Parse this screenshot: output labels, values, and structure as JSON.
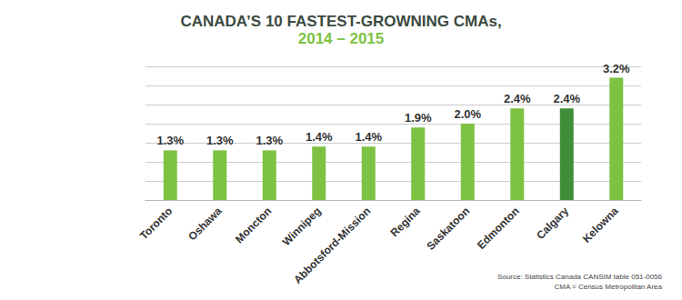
{
  "chart_data": {
    "type": "bar",
    "title": "CANADA’S 10 FASTEST-GROWNING CMAs,",
    "subtitle": "2014 – 2015",
    "categories": [
      "Toronto",
      "Oshawa",
      "Moncton",
      "Winnipeg",
      "Abbotsford-Mission",
      "Regina",
      "Saskatoon",
      "Edmonton",
      "Calgary",
      "Kelowna"
    ],
    "values": [
      1.3,
      1.3,
      1.3,
      1.4,
      1.4,
      1.9,
      2.0,
      2.4,
      2.4,
      3.2
    ],
    "value_labels": [
      "1.3%",
      "1.3%",
      "1.3%",
      "1.4%",
      "1.4%",
      "1.9%",
      "2.0%",
      "2.4%",
      "2.4%",
      "3.2%"
    ],
    "colors": [
      "#7dc242",
      "#7dc242",
      "#7dc242",
      "#7dc242",
      "#7dc242",
      "#7dc242",
      "#7dc242",
      "#7dc242",
      "#3f8f3a",
      "#7dc242"
    ],
    "ylim": [
      0,
      3.5
    ],
    "yticks": [
      0,
      0.5,
      1,
      1.5,
      2,
      2.5,
      3,
      3.5
    ],
    "grid": true,
    "data_labels": true,
    "tick_labels": "x",
    "annotations": [
      "Source: Statistics Canada CANSIM table 051-0056",
      "CMA = Census Metropolitan Area"
    ]
  }
}
